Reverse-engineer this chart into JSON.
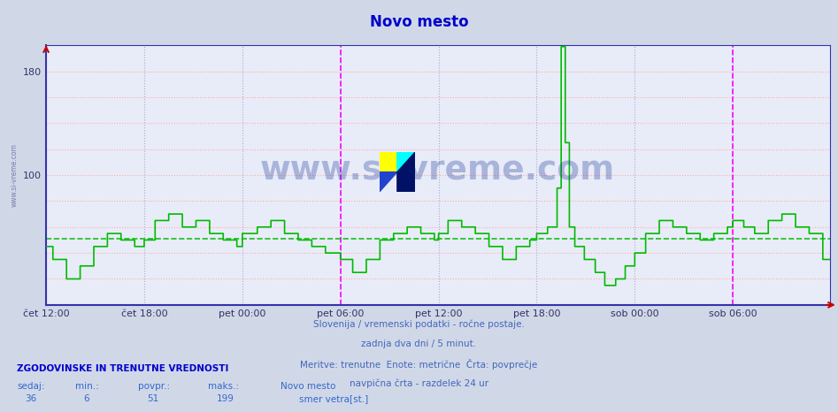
{
  "title": "Novo mesto",
  "title_color": "#0000cc",
  "bg_color": "#d0d8e8",
  "plot_bg_color": "#e8ecf8",
  "ylim": [
    0,
    200
  ],
  "ytick_positions": [
    20,
    40,
    60,
    80,
    100,
    120,
    140,
    160,
    180
  ],
  "ytick_labels": [
    "",
    "",
    "",
    "",
    "100",
    "",
    "",
    "",
    "180"
  ],
  "avg_value": 51,
  "min_value": 6,
  "max_value": 199,
  "current_value": 36,
  "line_color": "#00bb00",
  "avg_line_color": "#00bb00",
  "grid_h_color": "#ffaaaa",
  "grid_v_color": "#aaaacc",
  "xtick_labels": [
    "čet 12:00",
    "čet 18:00",
    "pet 00:00",
    "pet 06:00",
    "pet 12:00",
    "pet 18:00",
    "sob 00:00",
    "sob 06:00"
  ],
  "subtitle_lines": [
    "Slovenija / vremenski podatki - ročne postaje.",
    "zadnja dva dni / 5 minut.",
    "Meritve: trenutne  Enote: metrične  Črta: povprečje",
    "navpična črta - razdelek 24 ur"
  ],
  "legend_header": "ZGODOVINSKE IN TRENUTNE VREDNOSTI",
  "legend_col_labels": [
    "sedaj:",
    "min.:",
    "povpr.:",
    "maks.:"
  ],
  "legend_col_values": [
    "36",
    "6",
    "51",
    "199"
  ],
  "legend_station": "Novo mesto",
  "legend_series": "smer vetra[st.]",
  "watermark_text": "www.si-vreme.com",
  "n_points": 576
}
